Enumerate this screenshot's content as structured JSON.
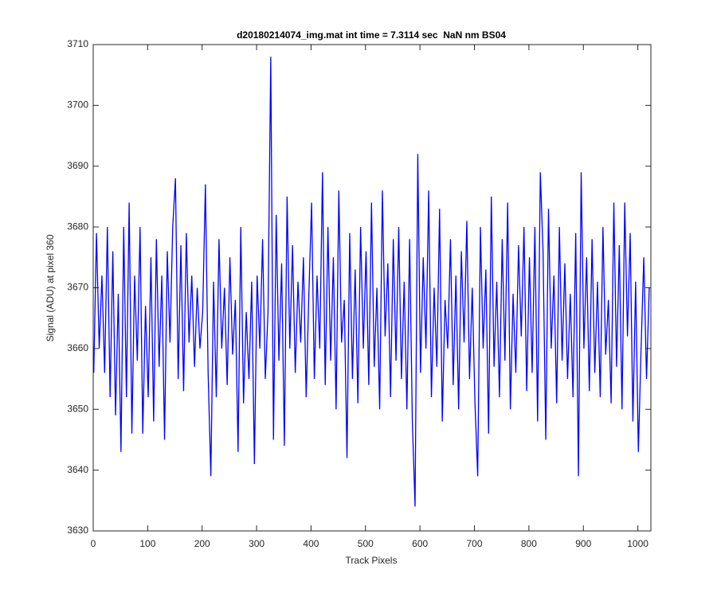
{
  "chart_data": {
    "type": "line",
    "title": "d20180214074_img.mat int time = 7.3114 sec  NaN nm BS04",
    "x_label": "Track Pixels",
    "y_label": "Signal (ADU) at pixel 360",
    "color": "#0000ff",
    "xlim": [
      0,
      1024
    ],
    "xticks": [
      0,
      100,
      200,
      300,
      400,
      500,
      600,
      700,
      800,
      900,
      1000
    ],
    "ylim": [
      3630,
      3710
    ],
    "yticks": [
      3630,
      3640,
      3650,
      3660,
      3670,
      3680,
      3690,
      3700,
      3710
    ],
    "x": [
      1,
      6,
      11,
      16,
      21,
      26,
      31,
      36,
      41,
      46,
      51,
      56,
      61,
      66,
      71,
      76,
      81,
      86,
      91,
      96,
      101,
      106,
      111,
      116,
      121,
      126,
      131,
      136,
      141,
      146,
      151,
      156,
      161,
      166,
      171,
      176,
      181,
      186,
      191,
      196,
      201,
      206,
      211,
      216,
      221,
      226,
      231,
      236,
      241,
      246,
      251,
      256,
      261,
      266,
      271,
      276,
      281,
      286,
      291,
      296,
      301,
      306,
      311,
      316,
      321,
      326,
      331,
      336,
      341,
      346,
      351,
      356,
      361,
      366,
      371,
      376,
      381,
      386,
      391,
      396,
      401,
      406,
      411,
      416,
      421,
      426,
      431,
      436,
      441,
      446,
      451,
      456,
      461,
      466,
      471,
      476,
      481,
      486,
      491,
      496,
      501,
      506,
      511,
      516,
      521,
      526,
      531,
      536,
      541,
      546,
      551,
      556,
      561,
      566,
      571,
      576,
      581,
      586,
      591,
      596,
      601,
      606,
      611,
      616,
      621,
      626,
      631,
      636,
      641,
      646,
      651,
      656,
      661,
      666,
      671,
      676,
      681,
      686,
      691,
      696,
      701,
      706,
      711,
      716,
      721,
      726,
      731,
      736,
      741,
      746,
      751,
      756,
      761,
      766,
      771,
      776,
      781,
      786,
      791,
      796,
      801,
      806,
      811,
      816,
      821,
      826,
      831,
      836,
      841,
      846,
      851,
      856,
      861,
      866,
      871,
      876,
      881,
      886,
      891,
      896,
      901,
      906,
      911,
      916,
      921,
      926,
      931,
      936,
      941,
      946,
      951,
      956,
      961,
      966,
      971,
      976,
      981,
      986,
      991,
      996,
      1001,
      1006,
      1011,
      1016,
      1021
    ],
    "values": [
      3656,
      3679,
      3660,
      3672,
      3656,
      3680,
      3652,
      3676,
      3649,
      3669,
      3643,
      3680,
      3652,
      3684,
      3646,
      3672,
      3658,
      3680,
      3646,
      3667,
      3652,
      3675,
      3648,
      3678,
      3657,
      3672,
      3645,
      3676,
      3661,
      3680,
      3688,
      3655,
      3677,
      3653,
      3679,
      3661,
      3672,
      3657,
      3670,
      3660,
      3666,
      3687,
      3656,
      3639,
      3671,
      3652,
      3678,
      3660,
      3670,
      3654,
      3675,
      3659,
      3668,
      3643,
      3680,
      3651,
      3666,
      3655,
      3671,
      3641,
      3672,
      3660,
      3678,
      3655,
      3666,
      3708,
      3645,
      3682,
      3658,
      3674,
      3644,
      3685,
      3660,
      3677,
      3656,
      3671,
      3661,
      3675,
      3652,
      3669,
      3684,
      3655,
      3672,
      3660,
      3689,
      3654,
      3680,
      3658,
      3675,
      3650,
      3686,
      3661,
      3668,
      3642,
      3679,
      3655,
      3673,
      3651,
      3680,
      3660,
      3676,
      3654,
      3684,
      3657,
      3670,
      3650,
      3686,
      3662,
      3674,
      3652,
      3678,
      3658,
      3680,
      3655,
      3671,
      3650,
      3678,
      3648,
      3634,
      3692,
      3656,
      3675,
      3660,
      3686,
      3652,
      3670,
      3657,
      3683,
      3648,
      3668,
      3660,
      3678,
      3654,
      3672,
      3650,
      3676,
      3661,
      3681,
      3655,
      3670,
      3651,
      3639,
      3680,
      3660,
      3673,
      3646,
      3685,
      3657,
      3671,
      3652,
      3678,
      3658,
      3684,
      3650,
      3669,
      3656,
      3677,
      3662,
      3680,
      3653,
      3675,
      3656,
      3680,
      3648,
      3689,
      3676,
      3645,
      3683,
      3660,
      3672,
      3651,
      3680,
      3658,
      3674,
      3655,
      3669,
      3652,
      3679,
      3639,
      3689,
      3660,
      3675,
      3653,
      3678,
      3656,
      3671,
      3652,
      3680,
      3659,
      3668,
      3651,
      3684,
      3657,
      3677,
      3650,
      3684,
      3662,
      3679,
      3648,
      3671,
      3643,
      3660,
      3675,
      3655,
      3670
    ]
  }
}
